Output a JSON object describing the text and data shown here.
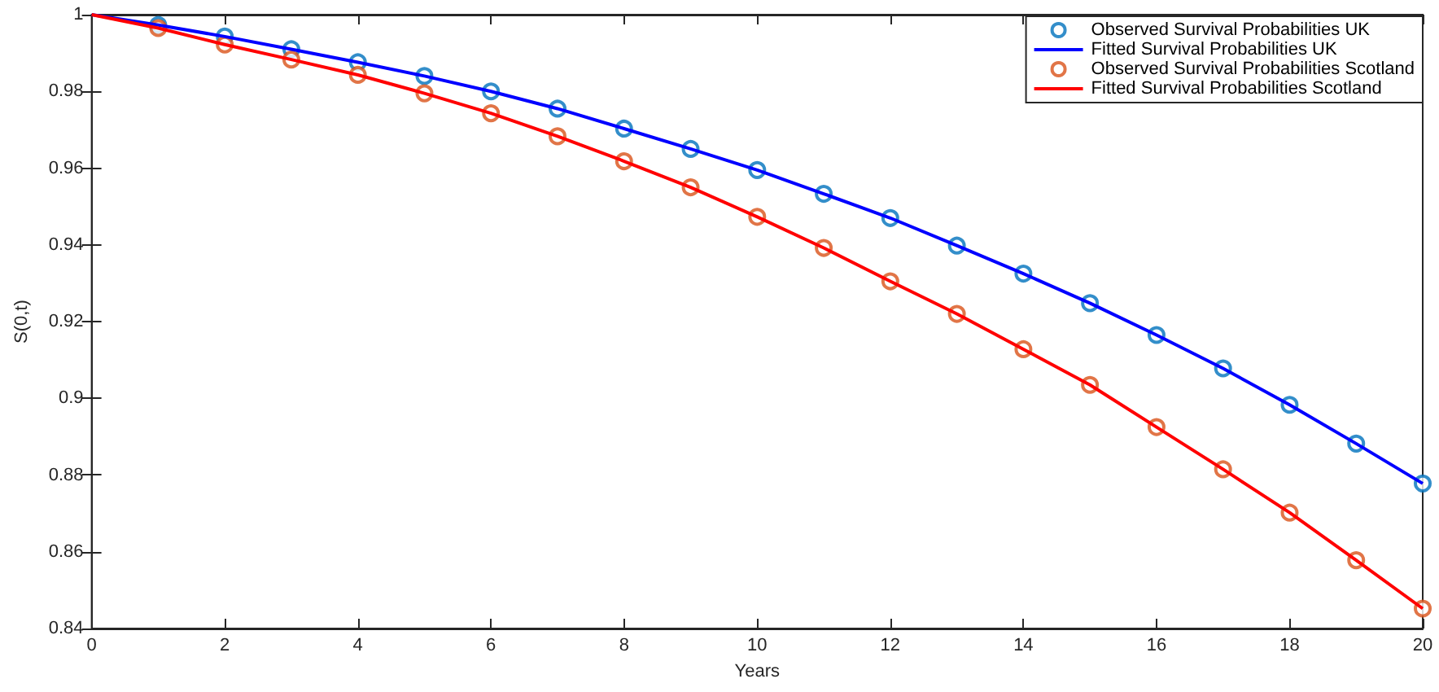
{
  "chart_data": {
    "type": "line",
    "xlabel": "Years",
    "ylabel": "S(0,t)",
    "xlim": [
      0,
      20
    ],
    "xticks": [
      0,
      2,
      4,
      6,
      8,
      10,
      12,
      14,
      16,
      18,
      20
    ],
    "ylim": [
      0.84,
      1
    ],
    "yticks": [
      0.84,
      0.86,
      0.88,
      0.9,
      0.92,
      0.94,
      0.96,
      0.98,
      1
    ],
    "grid": false,
    "legend": "top right",
    "series": [
      {
        "name": "Observed Survival Probabilities UK",
        "type": "scatter",
        "marker": "circle",
        "color": "#0072bd",
        "x": [
          1,
          2,
          3,
          4,
          5,
          6,
          7,
          8,
          9,
          10,
          11,
          12,
          13,
          14,
          15,
          16,
          17,
          18,
          19,
          20
        ],
        "values": [
          0.9973,
          0.9943,
          0.991,
          0.9876,
          0.984,
          0.98,
          0.9755,
          0.9703,
          0.965,
          0.9595,
          0.9533,
          0.947,
          0.9398,
          0.9325,
          0.9248,
          0.9165,
          0.9078,
          0.8983,
          0.8882,
          0.8778
        ]
      },
      {
        "name": "Fitted Survival Probabilities UK",
        "type": "line",
        "marker": "none",
        "line_style": "solid",
        "color": "#0000ff",
        "x": [
          0,
          1,
          2,
          3,
          4,
          5,
          6,
          7,
          8,
          9,
          10,
          11,
          12,
          13,
          14,
          15,
          16,
          17,
          18,
          19,
          20
        ],
        "values": [
          1,
          0.9973,
          0.9943,
          0.991,
          0.9876,
          0.984,
          0.98,
          0.9755,
          0.9703,
          0.965,
          0.9595,
          0.9533,
          0.947,
          0.9398,
          0.9325,
          0.9248,
          0.9165,
          0.9078,
          0.8983,
          0.8882,
          0.8778
        ]
      },
      {
        "name": "Observed Survival Probabilities Scotland",
        "type": "scatter",
        "marker": "circle",
        "color": "#d95319",
        "x": [
          1,
          2,
          3,
          4,
          5,
          6,
          7,
          8,
          9,
          10,
          11,
          12,
          13,
          14,
          15,
          16,
          17,
          18,
          19,
          20
        ],
        "values": [
          0.9965,
          0.9922,
          0.9883,
          0.9843,
          0.9795,
          0.9743,
          0.9683,
          0.9618,
          0.955,
          0.9473,
          0.9392,
          0.9305,
          0.922,
          0.9128,
          0.9035,
          0.8925,
          0.8815,
          0.8702,
          0.8578,
          0.8452
        ]
      },
      {
        "name": "Fitted Survival Probabilities Scotland",
        "type": "line",
        "marker": "none",
        "line_style": "solid",
        "color": "#ff0000",
        "x": [
          0,
          1,
          2,
          3,
          4,
          5,
          6,
          7,
          8,
          9,
          10,
          11,
          12,
          13,
          14,
          15,
          16,
          17,
          18,
          19,
          20
        ],
        "values": [
          1,
          0.9965,
          0.9922,
          0.9883,
          0.9843,
          0.9795,
          0.9743,
          0.9683,
          0.9618,
          0.955,
          0.9473,
          0.9392,
          0.9305,
          0.922,
          0.9128,
          0.9035,
          0.8925,
          0.8815,
          0.8702,
          0.8578,
          0.8452
        ]
      }
    ]
  }
}
